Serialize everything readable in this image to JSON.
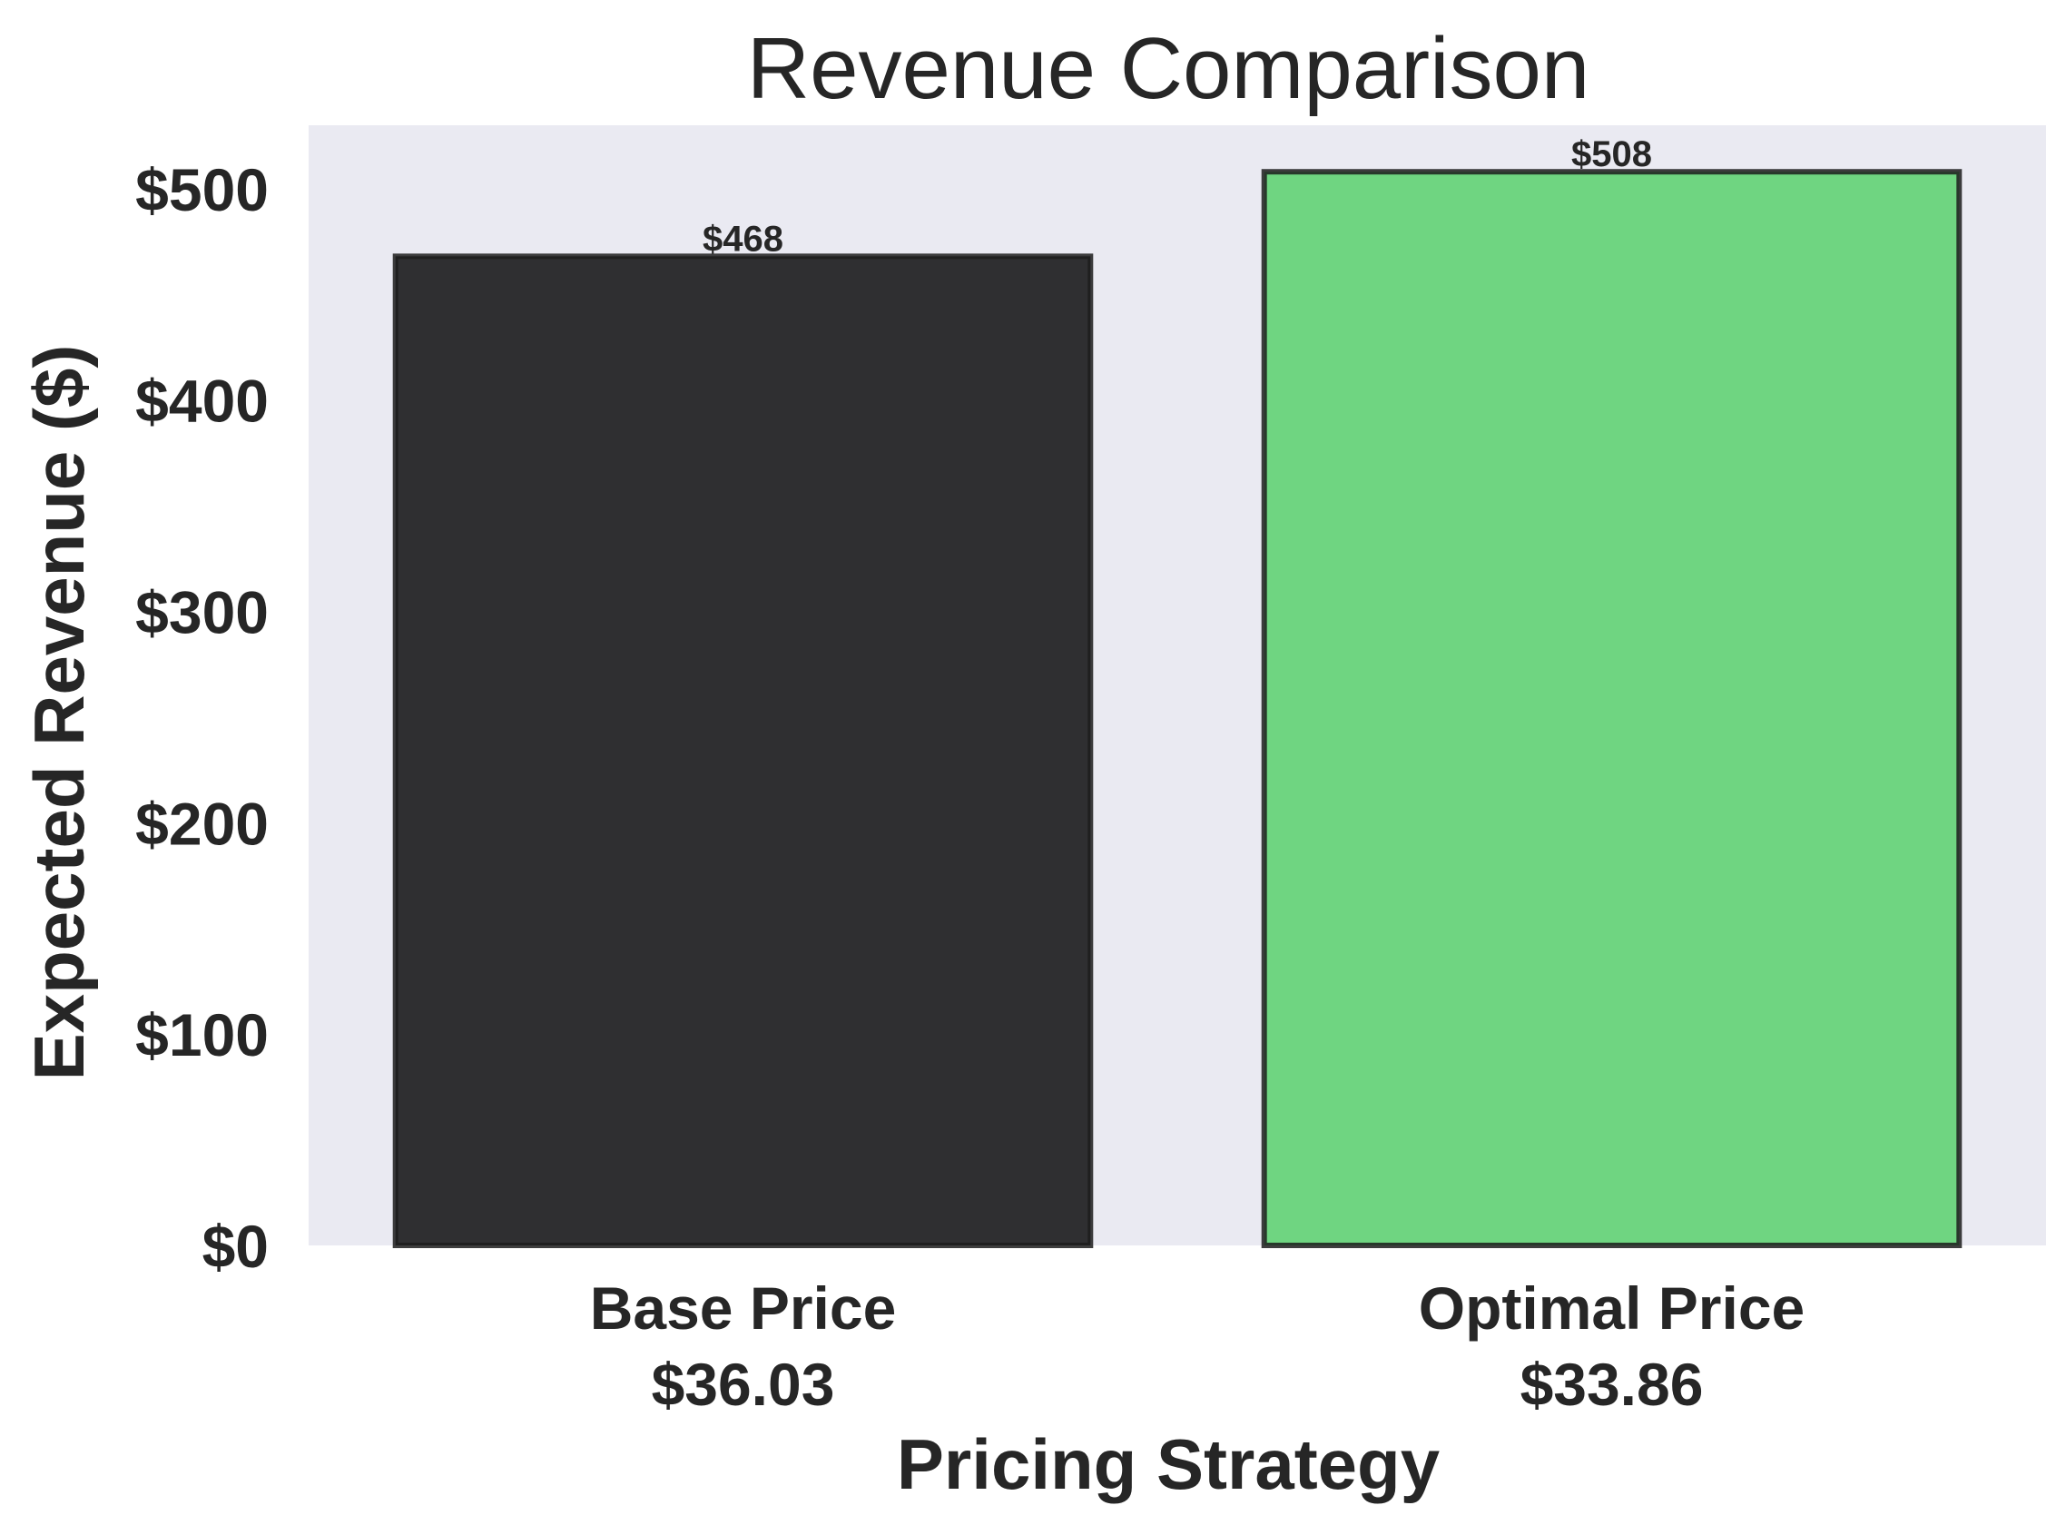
{
  "chart_data": {
    "type": "bar",
    "title": "Revenue Comparison",
    "xlabel": "Pricing Strategy",
    "ylabel": "Expected Revenue ($)",
    "categories": [
      {
        "line1": "Base Price",
        "line2": "$36.03"
      },
      {
        "line1": "Optimal Price",
        "line2": "$33.86"
      }
    ],
    "values": [
      468,
      508
    ],
    "bar_labels": [
      "$468",
      "$508"
    ],
    "ylim": [
      0,
      530
    ],
    "yticks": [
      0,
      100,
      200,
      300,
      400,
      500
    ],
    "ytick_labels": [
      "$0",
      "$100",
      "$200",
      "$300",
      "$400",
      "$500"
    ],
    "colors": {
      "bars": [
        "#2f2f31",
        "#6fd581"
      ],
      "edge": "#1c1c1c",
      "plot_background": "#eaeaf2"
    },
    "grid": false,
    "legend": "none"
  }
}
